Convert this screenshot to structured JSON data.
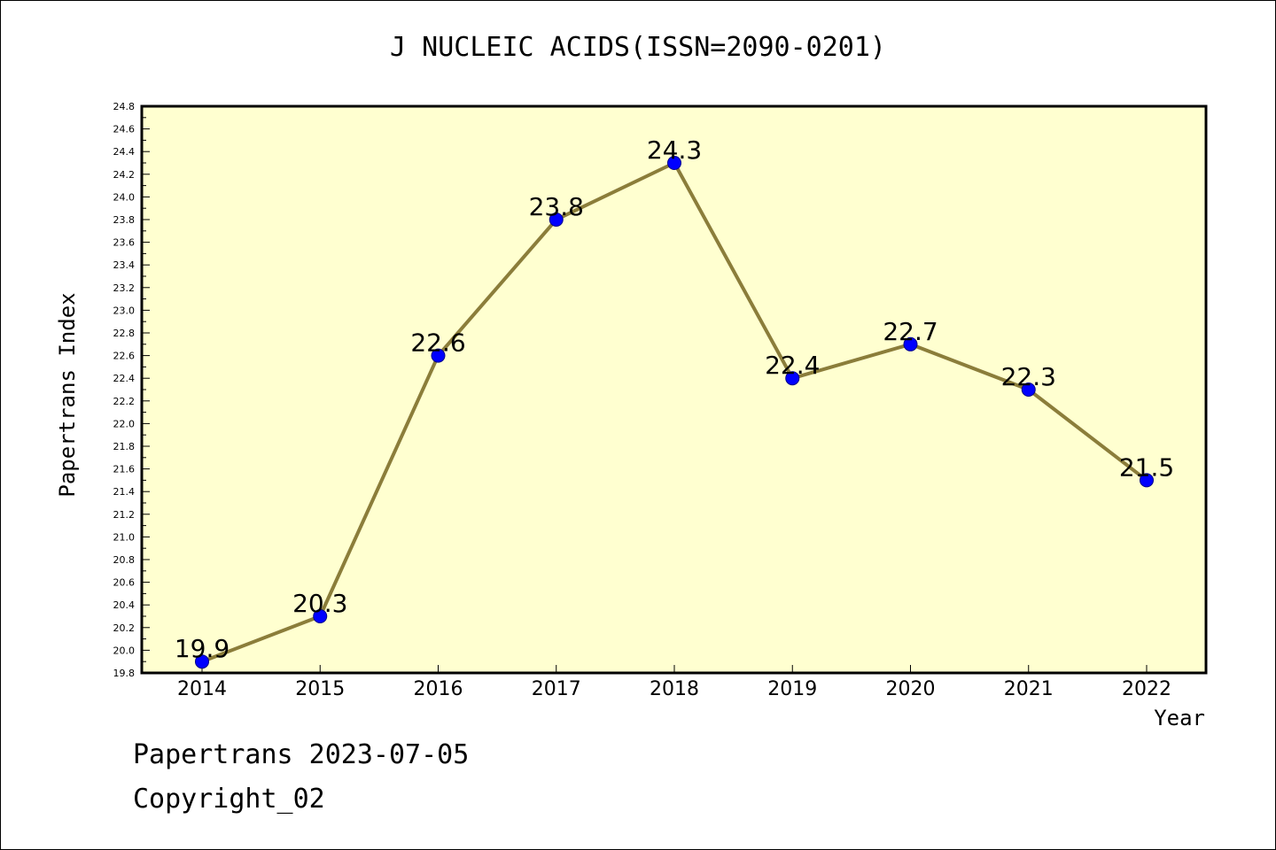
{
  "chart_data": {
    "type": "line",
    "title": "J NUCLEIC ACIDS(ISSN=2090-0201)",
    "xlabel": "Year",
    "ylabel": "Papertrans Index",
    "categories": [
      "2014",
      "2015",
      "2016",
      "2017",
      "2018",
      "2019",
      "2020",
      "2021",
      "2022"
    ],
    "values": [
      19.9,
      20.3,
      22.6,
      23.8,
      24.3,
      22.4,
      22.7,
      22.3,
      21.5
    ],
    "data_labels": [
      "19.9",
      "20.3",
      "22.6",
      "23.8",
      "24.3",
      "22.4",
      "22.7",
      "22.3",
      "21.5"
    ],
    "ylim": [
      19.8,
      24.8
    ],
    "y_ticks": [
      "19.8",
      "20.0",
      "20.2",
      "20.4",
      "20.6",
      "20.8",
      "21.0",
      "21.2",
      "21.4",
      "21.6",
      "21.8",
      "22.0",
      "22.2",
      "22.4",
      "22.6",
      "22.8",
      "23.0",
      "23.2",
      "23.4",
      "23.6",
      "23.8",
      "24.0",
      "24.2",
      "24.4",
      "24.6",
      "24.8"
    ],
    "grid": false,
    "colors": {
      "plot_background": "#ffffd0",
      "line": "#8b7d3a",
      "marker": "#0000ff"
    }
  },
  "footer": {
    "line1": "Papertrans 2023-07-05",
    "line2": "Copyright_02"
  }
}
